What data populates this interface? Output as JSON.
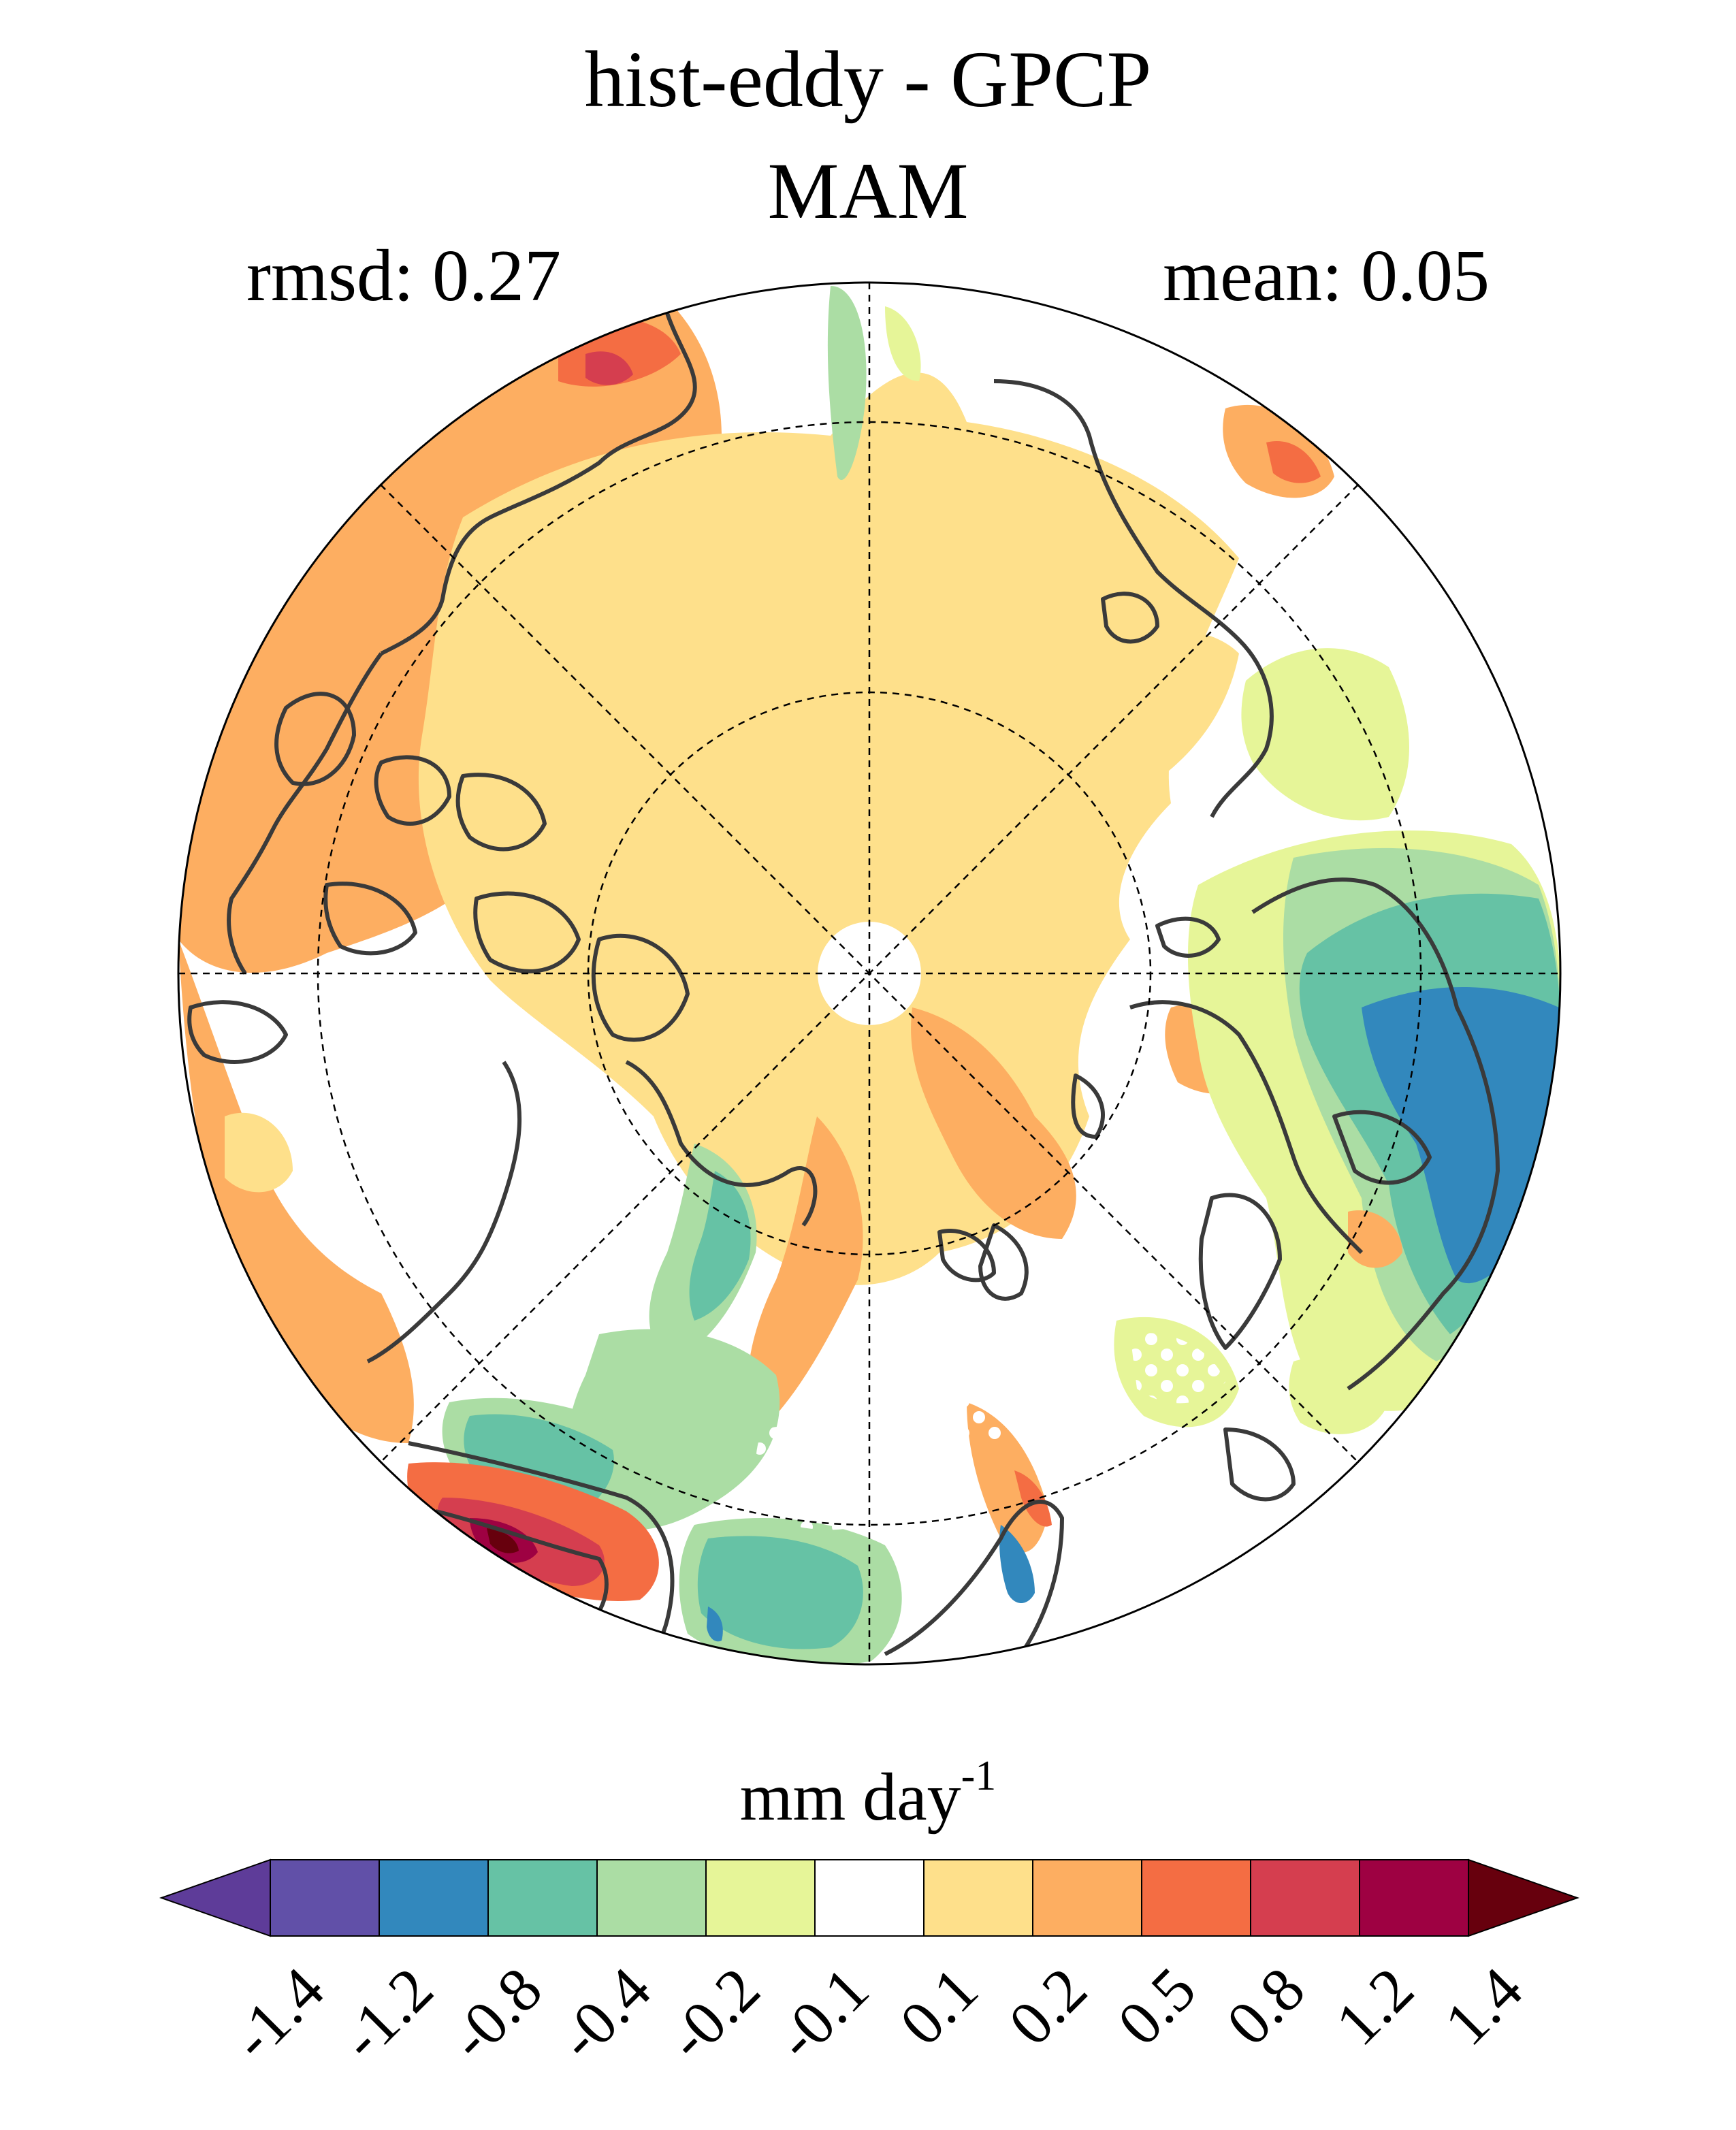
{
  "header": {
    "title": "hist-eddy - GPCP",
    "season": "MAM",
    "rmsd_text": "rmsd: 0.27",
    "mean_text": "mean: 0.05"
  },
  "map": {
    "projection": "north-polar-stereographic",
    "graticule": "dashed",
    "coastlines_color": "#3a3a3a",
    "stippling": "white dots mark non-significant areas"
  },
  "colorbar": {
    "units_base": "mm day",
    "units_exp": "-1",
    "levels": [
      "-1.4",
      "-1.2",
      "-0.8",
      "-0.4",
      "-0.2",
      "-0.1",
      "0.1",
      "0.2",
      "0.5",
      "0.8",
      "1.2",
      "1.4"
    ],
    "colors": [
      "#5e3c99",
      "#6150a8",
      "#3288bd",
      "#66c2a5",
      "#abdda4",
      "#e6f598",
      "#ffffff",
      "#fee08b",
      "#fdae61",
      "#f46d43",
      "#d53e4f",
      "#9e0142",
      "#67000d"
    ]
  },
  "chart_data": {
    "type": "heatmap",
    "title": "hist-eddy - GPCP",
    "subtitle": "MAM",
    "annotations": [
      "rmsd: 0.27",
      "mean: 0.05"
    ],
    "colorbar_label": "mm day-1",
    "levels": [
      -1.4,
      -1.2,
      -0.8,
      -0.4,
      -0.2,
      -0.1,
      0.1,
      0.2,
      0.5,
      0.8,
      1.2,
      1.4
    ],
    "extend": "both"
  }
}
